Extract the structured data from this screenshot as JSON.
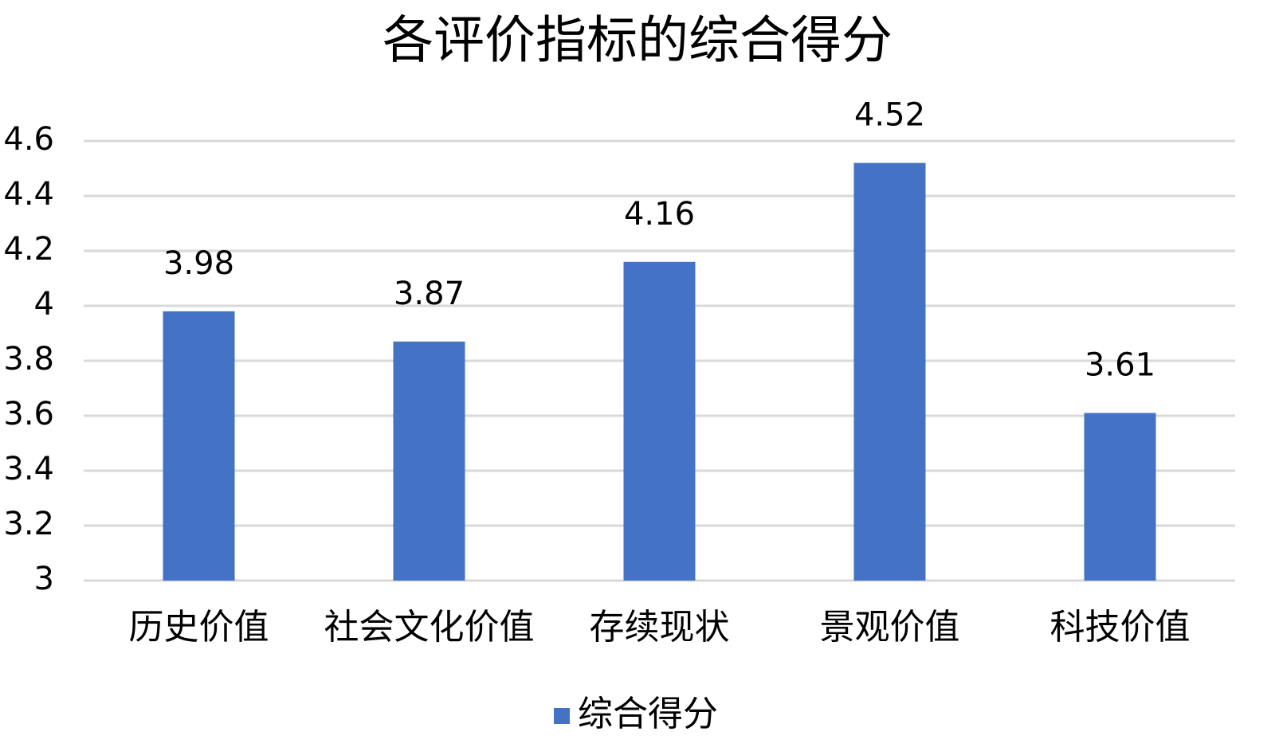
{
  "chart_data": {
    "type": "bar",
    "title": "各评价指标的综合得分",
    "categories": [
      "历史价值",
      "社会文化价值",
      "存续现状",
      "景观价值",
      "科技价值"
    ],
    "series": [
      {
        "name": "综合得分",
        "color": "#4472c4",
        "values": [
          3.98,
          3.87,
          4.16,
          4.52,
          3.61
        ]
      }
    ],
    "ylim": [
      3,
      4.6
    ],
    "yticks": [
      3,
      3.2,
      3.4,
      3.6,
      3.8,
      4,
      4.2,
      4.4,
      4.6
    ],
    "grid": true,
    "legend": "bottom",
    "data_labels": true
  }
}
